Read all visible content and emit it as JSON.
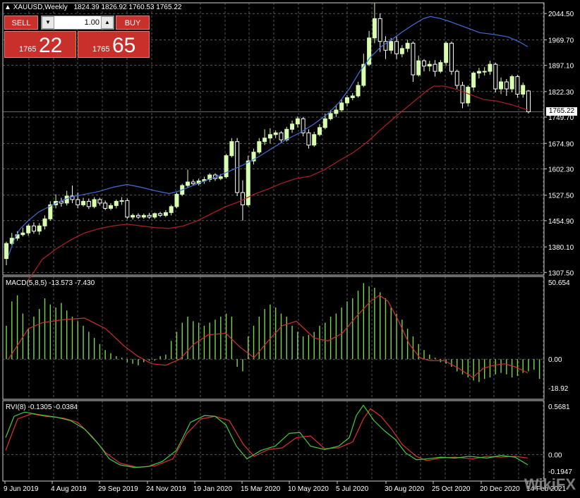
{
  "header": {
    "symbol_tf": "XAUUSD,Weekly",
    "ohlc": "1824.39 1826.92 1760.53 1765.22"
  },
  "trade_panel": {
    "sell_label": "SELL",
    "buy_label": "BUY",
    "lot": "1.00",
    "sell_price_small": "1765",
    "sell_price_big": "22",
    "buy_price_small": "1765",
    "buy_price_big": "65"
  },
  "price_axis": {
    "ticks": [
      "2044.50",
      "1969.70",
      "1897.10",
      "1822.30",
      "1749.70",
      "1674.90",
      "1602.30",
      "1527.50",
      "1454.90",
      "1380.10",
      "1307.50"
    ],
    "current_price": "1765.22"
  },
  "macd": {
    "label": "MACD(5,8,5) -13.573 -7.430",
    "ticks": [
      "50.654",
      "0.00",
      "-18.92"
    ]
  },
  "rvi": {
    "label": "RVI(8) -0.1305 -0.0384",
    "ticks": [
      "0.5681",
      "0.00",
      "-0.1947"
    ]
  },
  "time_axis": [
    "9 Jun 2019",
    "4 Aug 2019",
    "29 Sep 2019",
    "24 Nov 2019",
    "19 Jan 2020",
    "15 Mar 2020",
    "10 May 2020",
    "5 Jul 2020",
    "30 Aug 2020",
    "25 Oct 2020",
    "20 Dec 2020",
    "14 Feb 2021"
  ],
  "watermark_text": "WikiFX",
  "colors": {
    "bull": "#d8ffb0",
    "bear": "#ffffff",
    "ma_fast": "#3f6fd8",
    "ma_slow": "#b32020",
    "macd_hist": "#7cd44a",
    "macd_signal": "#d03030",
    "rvi_main": "#3fcf3f",
    "rvi_signal": "#e03030",
    "grid": "#8a8a8a"
  },
  "chart_data": {
    "type": "candlestick",
    "ylim": [
      1300,
      2075
    ],
    "candles": [
      [
        1347,
        1390,
        1328,
        1395
      ],
      [
        1390,
        1405,
        1385,
        1420
      ],
      [
        1405,
        1415,
        1398,
        1425
      ],
      [
        1415,
        1420,
        1410,
        1435
      ],
      [
        1420,
        1440,
        1412,
        1445
      ],
      [
        1440,
        1425,
        1418,
        1450
      ],
      [
        1425,
        1440,
        1415,
        1448
      ],
      [
        1440,
        1460,
        1430,
        1470
      ],
      [
        1460,
        1500,
        1455,
        1510
      ],
      [
        1500,
        1510,
        1490,
        1530
      ],
      [
        1510,
        1505,
        1495,
        1520
      ],
      [
        1505,
        1525,
        1498,
        1540
      ],
      [
        1525,
        1515,
        1505,
        1555
      ],
      [
        1515,
        1500,
        1490,
        1535
      ],
      [
        1500,
        1510,
        1495,
        1520
      ],
      [
        1510,
        1495,
        1488,
        1518
      ],
      [
        1495,
        1515,
        1490,
        1522
      ],
      [
        1515,
        1505,
        1498,
        1520
      ],
      [
        1505,
        1490,
        1485,
        1512
      ],
      [
        1490,
        1498,
        1485,
        1505
      ],
      [
        1498,
        1510,
        1490,
        1515
      ],
      [
        1510,
        1512,
        1500,
        1522
      ],
      [
        1512,
        1465,
        1460,
        1518
      ],
      [
        1465,
        1470,
        1458,
        1475
      ],
      [
        1470,
        1465,
        1460,
        1476
      ],
      [
        1465,
        1470,
        1460,
        1475
      ],
      [
        1470,
        1465,
        1460,
        1477
      ],
      [
        1465,
        1475,
        1460,
        1478
      ],
      [
        1475,
        1470,
        1465,
        1480
      ],
      [
        1470,
        1478,
        1465,
        1485
      ],
      [
        1478,
        1495,
        1470,
        1500
      ],
      [
        1495,
        1530,
        1490,
        1535
      ],
      [
        1530,
        1555,
        1525,
        1560
      ],
      [
        1555,
        1565,
        1548,
        1600
      ],
      [
        1565,
        1560,
        1555,
        1572
      ],
      [
        1560,
        1568,
        1555,
        1575
      ],
      [
        1568,
        1572,
        1560,
        1580
      ],
      [
        1572,
        1585,
        1565,
        1590
      ],
      [
        1585,
        1575,
        1568,
        1590
      ],
      [
        1575,
        1580,
        1570,
        1588
      ],
      [
        1580,
        1640,
        1575,
        1645
      ],
      [
        1640,
        1680,
        1635,
        1690
      ],
      [
        1680,
        1535,
        1525,
        1690
      ],
      [
        1535,
        1500,
        1455,
        1570
      ],
      [
        1500,
        1625,
        1495,
        1640
      ],
      [
        1625,
        1650,
        1615,
        1660
      ],
      [
        1650,
        1680,
        1645,
        1690
      ],
      [
        1680,
        1690,
        1670,
        1715
      ],
      [
        1690,
        1700,
        1675,
        1718
      ],
      [
        1700,
        1705,
        1690,
        1712
      ],
      [
        1705,
        1685,
        1675,
        1710
      ],
      [
        1685,
        1715,
        1680,
        1722
      ],
      [
        1715,
        1730,
        1705,
        1740
      ],
      [
        1730,
        1745,
        1720,
        1752
      ],
      [
        1745,
        1705,
        1695,
        1750
      ],
      [
        1705,
        1670,
        1660,
        1715
      ],
      [
        1670,
        1700,
        1665,
        1708
      ],
      [
        1700,
        1720,
        1695,
        1730
      ],
      [
        1720,
        1745,
        1715,
        1760
      ],
      [
        1745,
        1760,
        1740,
        1770
      ],
      [
        1760,
        1770,
        1750,
        1785
      ],
      [
        1770,
        1790,
        1765,
        1800
      ],
      [
        1790,
        1805,
        1780,
        1812
      ],
      [
        1805,
        1810,
        1798,
        1818
      ],
      [
        1810,
        1840,
        1805,
        1850
      ],
      [
        1840,
        1900,
        1835,
        1930
      ],
      [
        1900,
        1975,
        1895,
        1995
      ],
      [
        1975,
        2030,
        1960,
        2075
      ],
      [
        2030,
        1965,
        1935,
        2045
      ],
      [
        1965,
        1940,
        1915,
        1980
      ],
      [
        1940,
        1965,
        1930,
        1975
      ],
      [
        1965,
        1930,
        1915,
        1980
      ],
      [
        1930,
        1945,
        1920,
        1955
      ],
      [
        1945,
        1960,
        1935,
        1970
      ],
      [
        1960,
        1870,
        1850,
        1965
      ],
      [
        1870,
        1910,
        1865,
        1925
      ],
      [
        1910,
        1895,
        1880,
        1915
      ],
      [
        1895,
        1900,
        1880,
        1910
      ],
      [
        1900,
        1880,
        1865,
        1912
      ],
      [
        1880,
        1905,
        1875,
        1912
      ],
      [
        1905,
        1960,
        1895,
        1965
      ],
      [
        1960,
        1880,
        1870,
        1965
      ],
      [
        1880,
        1840,
        1830,
        1885
      ],
      [
        1840,
        1790,
        1775,
        1850
      ],
      [
        1790,
        1835,
        1780,
        1840
      ],
      [
        1835,
        1875,
        1825,
        1880
      ],
      [
        1875,
        1880,
        1860,
        1890
      ],
      [
        1880,
        1880,
        1868,
        1892
      ],
      [
        1880,
        1900,
        1870,
        1910
      ],
      [
        1900,
        1830,
        1820,
        1905
      ],
      [
        1830,
        1850,
        1815,
        1862
      ],
      [
        1850,
        1830,
        1810,
        1858
      ],
      [
        1830,
        1865,
        1820,
        1870
      ],
      [
        1865,
        1815,
        1805,
        1870
      ],
      [
        1815,
        1840,
        1805,
        1848
      ],
      [
        1824,
        1765,
        1760,
        1827
      ]
    ],
    "ma_fast": [
      [
        12,
        1355
      ],
      [
        20,
        1400
      ],
      [
        28,
        1430
      ],
      [
        40,
        1455
      ],
      [
        55,
        1480
      ],
      [
        70,
        1495
      ],
      [
        85,
        1510
      ],
      [
        100,
        1522
      ],
      [
        120,
        1530
      ],
      [
        140,
        1538
      ],
      [
        160,
        1550
      ],
      [
        180,
        1558
      ],
      [
        200,
        1550
      ],
      [
        220,
        1540
      ],
      [
        240,
        1532
      ],
      [
        255,
        1540
      ],
      [
        270,
        1552
      ],
      [
        290,
        1568
      ],
      [
        310,
        1583
      ],
      [
        330,
        1600
      ],
      [
        345,
        1614
      ],
      [
        365,
        1635
      ],
      [
        385,
        1660
      ],
      [
        405,
        1685
      ],
      [
        425,
        1705
      ],
      [
        445,
        1730
      ],
      [
        465,
        1760
      ],
      [
        480,
        1790
      ],
      [
        495,
        1830
      ],
      [
        510,
        1880
      ],
      [
        525,
        1920
      ],
      [
        540,
        1950
      ],
      [
        555,
        1970
      ],
      [
        570,
        1992
      ],
      [
        585,
        2012
      ],
      [
        600,
        2030
      ],
      [
        610,
        2036
      ],
      [
        625,
        2030
      ],
      [
        640,
        2020
      ],
      [
        660,
        2005
      ],
      [
        680,
        1990
      ],
      [
        700,
        1985
      ],
      [
        720,
        1978
      ],
      [
        735,
        1965
      ],
      [
        748,
        1950
      ]
    ],
    "ma_slow": [
      [
        40,
        1285
      ],
      [
        60,
        1345
      ],
      [
        80,
        1375
      ],
      [
        100,
        1400
      ],
      [
        120,
        1420
      ],
      [
        140,
        1432
      ],
      [
        160,
        1440
      ],
      [
        180,
        1445
      ],
      [
        200,
        1440
      ],
      [
        220,
        1435
      ],
      [
        240,
        1433
      ],
      [
        260,
        1440
      ],
      [
        280,
        1455
      ],
      [
        300,
        1475
      ],
      [
        320,
        1495
      ],
      [
        340,
        1510
      ],
      [
        360,
        1530
      ],
      [
        380,
        1545
      ],
      [
        400,
        1562
      ],
      [
        420,
        1575
      ],
      [
        440,
        1582
      ],
      [
        460,
        1600
      ],
      [
        480,
        1625
      ],
      [
        500,
        1648
      ],
      [
        520,
        1678
      ],
      [
        540,
        1715
      ],
      [
        560,
        1750
      ],
      [
        575,
        1775
      ],
      [
        590,
        1800
      ],
      [
        605,
        1825
      ],
      [
        615,
        1838
      ],
      [
        630,
        1838
      ],
      [
        645,
        1830
      ],
      [
        665,
        1815
      ],
      [
        685,
        1800
      ],
      [
        705,
        1795
      ],
      [
        725,
        1785
      ],
      [
        748,
        1770
      ]
    ],
    "macd_hist": [
      22,
      38,
      42,
      30,
      20,
      28,
      33,
      40,
      36,
      34,
      37,
      32,
      28,
      25,
      22,
      18,
      14,
      10,
      6,
      4,
      2,
      1,
      -2,
      -3,
      -4,
      -2,
      -1,
      -1,
      2,
      3,
      12,
      18,
      24,
      28,
      25,
      24,
      22,
      24,
      26,
      28,
      30,
      28,
      -5,
      -8,
      15,
      22,
      28,
      33,
      36,
      34,
      30,
      28,
      22,
      18,
      15,
      16,
      18,
      22,
      24,
      28,
      30,
      34,
      38,
      40,
      45,
      50,
      48,
      47,
      44,
      40,
      34,
      30,
      26,
      20,
      15,
      10,
      6,
      3,
      1,
      -2,
      -3,
      -5,
      -8,
      -10,
      -12,
      -14,
      -15,
      -13,
      -12,
      -10,
      -9,
      -10,
      -12,
      -11,
      -9,
      -8,
      -7,
      -13
    ],
    "macd_signal": [
      [
        12,
        0
      ],
      [
        40,
        20
      ],
      [
        60,
        24
      ],
      [
        90,
        26
      ],
      [
        120,
        27
      ],
      [
        150,
        20
      ],
      [
        175,
        9
      ],
      [
        195,
        2
      ],
      [
        215,
        -3
      ],
      [
        235,
        -4
      ],
      [
        255,
        0
      ],
      [
        275,
        10
      ],
      [
        295,
        16
      ],
      [
        320,
        17
      ],
      [
        340,
        8
      ],
      [
        360,
        1
      ],
      [
        380,
        12
      ],
      [
        400,
        22
      ],
      [
        420,
        25
      ],
      [
        445,
        14
      ],
      [
        465,
        12
      ],
      [
        485,
        17
      ],
      [
        505,
        28
      ],
      [
        525,
        38
      ],
      [
        538,
        42
      ],
      [
        550,
        38
      ],
      [
        565,
        25
      ],
      [
        580,
        10
      ],
      [
        595,
        1
      ],
      [
        610,
        -1
      ],
      [
        630,
        -1
      ],
      [
        650,
        -6
      ],
      [
        670,
        -12
      ],
      [
        685,
        -6
      ],
      [
        700,
        -4
      ],
      [
        715,
        -3
      ],
      [
        730,
        -5
      ],
      [
        748,
        -9
      ]
    ],
    "rvi_main": [
      [
        8,
        0.2
      ],
      [
        20,
        0.45
      ],
      [
        35,
        0.5
      ],
      [
        55,
        0.47
      ],
      [
        80,
        0.44
      ],
      [
        100,
        0.4
      ],
      [
        120,
        0.3
      ],
      [
        140,
        0.12
      ],
      [
        155,
        -0.05
      ],
      [
        170,
        -0.12
      ],
      [
        190,
        -0.15
      ],
      [
        210,
        -0.14
      ],
      [
        230,
        -0.08
      ],
      [
        250,
        0.05
      ],
      [
        270,
        0.38
      ],
      [
        290,
        0.46
      ],
      [
        305,
        0.45
      ],
      [
        320,
        0.35
      ],
      [
        335,
        0.1
      ],
      [
        350,
        -0.05
      ],
      [
        370,
        0.05
      ],
      [
        390,
        0.1
      ],
      [
        410,
        0.25
      ],
      [
        425,
        0.26
      ],
      [
        440,
        0.1
      ],
      [
        460,
        0.06
      ],
      [
        480,
        0.1
      ],
      [
        495,
        0.2
      ],
      [
        505,
        0.46
      ],
      [
        515,
        0.58
      ],
      [
        530,
        0.4
      ],
      [
        545,
        0.28
      ],
      [
        560,
        0.18
      ],
      [
        575,
        0.02
      ],
      [
        590,
        -0.06
      ],
      [
        605,
        -0.05
      ],
      [
        625,
        -0.03
      ],
      [
        645,
        -0.04
      ],
      [
        665,
        -0.02
      ],
      [
        690,
        -0.04
      ],
      [
        710,
        -0.01
      ],
      [
        730,
        -0.03
      ],
      [
        748,
        -0.12
      ]
    ],
    "rvi_signal": [
      [
        8,
        0.05
      ],
      [
        25,
        0.42
      ],
      [
        45,
        0.48
      ],
      [
        65,
        0.45
      ],
      [
        90,
        0.43
      ],
      [
        110,
        0.38
      ],
      [
        130,
        0.22
      ],
      [
        150,
        0.02
      ],
      [
        170,
        -0.1
      ],
      [
        195,
        -0.15
      ],
      [
        220,
        -0.13
      ],
      [
        245,
        -0.05
      ],
      [
        265,
        0.25
      ],
      [
        285,
        0.42
      ],
      [
        305,
        0.45
      ],
      [
        325,
        0.4
      ],
      [
        345,
        0.12
      ],
      [
        360,
        -0.02
      ],
      [
        380,
        0.06
      ],
      [
        400,
        0.08
      ],
      [
        420,
        0.2
      ],
      [
        440,
        0.22
      ],
      [
        460,
        0.07
      ],
      [
        480,
        0.08
      ],
      [
        500,
        0.15
      ],
      [
        515,
        0.42
      ],
      [
        525,
        0.54
      ],
      [
        540,
        0.45
      ],
      [
        555,
        0.3
      ],
      [
        570,
        0.12
      ],
      [
        590,
        -0.02
      ],
      [
        605,
        -0.07
      ],
      [
        625,
        -0.04
      ],
      [
        645,
        -0.03
      ],
      [
        670,
        -0.05
      ],
      [
        690,
        -0.02
      ],
      [
        710,
        -0.03
      ],
      [
        730,
        -0.02
      ],
      [
        748,
        -0.04
      ]
    ]
  }
}
